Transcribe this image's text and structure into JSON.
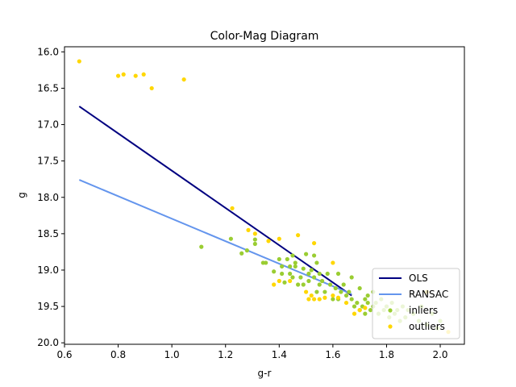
{
  "chart_data": {
    "type": "scatter",
    "title": "Color-Mag Diagram",
    "xlabel": "g-r",
    "ylabel": "g",
    "xlim": [
      0.6,
      2.09
    ],
    "ylim": [
      20.02,
      15.93
    ],
    "y_inverted": true,
    "grid": false,
    "legend_position": "lower right",
    "x_ticks": [
      0.6,
      0.8,
      1.0,
      1.2,
      1.4,
      1.6,
      1.8,
      2.0
    ],
    "x_tick_labels": [
      "0.6",
      "0.8",
      "1.0",
      "1.2",
      "1.4",
      "1.6",
      "1.8",
      "2.0"
    ],
    "y_ticks": [
      16.0,
      16.5,
      17.0,
      17.5,
      18.0,
      18.5,
      19.0,
      19.5,
      20.0
    ],
    "y_tick_labels": [
      "16.0",
      "16.5",
      "17.0",
      "17.5",
      "18.0",
      "18.5",
      "19.0",
      "19.5",
      "20.0"
    ],
    "lines": [
      {
        "name": "OLS",
        "color": "#000080",
        "x": [
          0.655,
          1.67
        ],
        "y": [
          16.75,
          19.35
        ]
      },
      {
        "name": "RANSAC",
        "color": "#6495ED",
        "x": [
          0.655,
          1.67
        ],
        "y": [
          17.76,
          19.33
        ]
      }
    ],
    "scatter": [
      {
        "name": "inliers",
        "color": "#9ACD32",
        "points": [
          [
            1.11,
            18.68
          ],
          [
            1.22,
            18.57
          ],
          [
            1.26,
            18.77
          ],
          [
            1.28,
            18.73
          ],
          [
            1.31,
            18.64
          ],
          [
            1.31,
            18.58
          ],
          [
            1.34,
            18.9
          ],
          [
            1.35,
            18.9
          ],
          [
            1.38,
            19.02
          ],
          [
            1.4,
            18.85
          ],
          [
            1.41,
            18.95
          ],
          [
            1.41,
            19.05
          ],
          [
            1.42,
            19.17
          ],
          [
            1.43,
            18.85
          ],
          [
            1.44,
            18.95
          ],
          [
            1.44,
            19.05
          ],
          [
            1.45,
            18.8
          ],
          [
            1.45,
            19.1
          ],
          [
            1.46,
            18.9
          ],
          [
            1.46,
            18.95
          ],
          [
            1.47,
            19.2
          ],
          [
            1.48,
            19.1
          ],
          [
            1.49,
            18.98
          ],
          [
            1.49,
            19.2
          ],
          [
            1.5,
            18.78
          ],
          [
            1.51,
            19.15
          ],
          [
            1.51,
            19.05
          ],
          [
            1.52,
            19.0
          ],
          [
            1.53,
            18.8
          ],
          [
            1.53,
            19.1
          ],
          [
            1.54,
            18.9
          ],
          [
            1.54,
            19.3
          ],
          [
            1.55,
            19.2
          ],
          [
            1.55,
            19.05
          ],
          [
            1.56,
            19.15
          ],
          [
            1.57,
            19.3
          ],
          [
            1.58,
            19.05
          ],
          [
            1.59,
            19.2
          ],
          [
            1.6,
            19.4
          ],
          [
            1.61,
            19.25
          ],
          [
            1.62,
            19.05
          ],
          [
            1.62,
            19.4
          ],
          [
            1.63,
            19.3
          ],
          [
            1.64,
            19.2
          ],
          [
            1.65,
            19.35
          ],
          [
            1.66,
            19.3
          ],
          [
            1.67,
            19.4
          ],
          [
            1.67,
            19.1
          ],
          [
            1.68,
            19.5
          ],
          [
            1.69,
            19.45
          ],
          [
            1.7,
            19.25
          ],
          [
            1.7,
            19.55
          ],
          [
            1.71,
            19.5
          ],
          [
            1.72,
            19.4
          ],
          [
            1.72,
            19.6
          ],
          [
            1.73,
            19.35
          ],
          [
            1.73,
            19.45
          ],
          [
            1.74,
            19.55
          ],
          [
            1.75,
            19.3
          ],
          [
            1.75,
            19.5
          ],
          [
            1.76,
            19.45
          ],
          [
            1.77,
            19.6
          ],
          [
            1.78,
            19.4
          ],
          [
            1.79,
            19.55
          ],
          [
            1.8,
            19.5
          ],
          [
            1.81,
            19.65
          ],
          [
            1.82,
            19.45
          ],
          [
            1.83,
            19.6
          ],
          [
            1.84,
            19.55
          ],
          [
            1.85,
            19.7
          ],
          [
            1.86,
            19.5
          ],
          [
            1.87,
            19.65
          ],
          [
            1.88,
            19.55
          ],
          [
            1.9,
            19.6
          ],
          [
            1.92,
            19.7
          ],
          [
            1.93,
            19.5
          ],
          [
            1.95,
            19.75
          ],
          [
            1.97,
            19.6
          ],
          [
            1.99,
            19.8
          ],
          [
            2.0,
            19.7
          ]
        ]
      },
      {
        "name": "outliers",
        "color": "#FFD700",
        "points": [
          [
            0.655,
            16.13
          ],
          [
            0.8,
            16.33
          ],
          [
            0.82,
            16.31
          ],
          [
            0.865,
            16.33
          ],
          [
            0.895,
            16.31
          ],
          [
            0.925,
            16.5
          ],
          [
            1.045,
            16.38
          ],
          [
            1.225,
            18.15
          ],
          [
            1.285,
            18.45
          ],
          [
            1.31,
            18.5
          ],
          [
            1.36,
            18.6
          ],
          [
            1.4,
            18.57
          ],
          [
            1.47,
            18.52
          ],
          [
            1.53,
            18.63
          ],
          [
            1.6,
            18.9
          ],
          [
            1.38,
            19.2
          ],
          [
            1.4,
            19.15
          ],
          [
            1.44,
            19.15
          ],
          [
            1.5,
            19.3
          ],
          [
            1.51,
            19.4
          ],
          [
            1.52,
            19.35
          ],
          [
            1.53,
            19.4
          ],
          [
            1.55,
            19.4
          ],
          [
            1.57,
            19.38
          ],
          [
            1.6,
            19.35
          ],
          [
            1.62,
            19.38
          ],
          [
            1.65,
            19.45
          ],
          [
            1.68,
            19.6
          ],
          [
            1.7,
            19.55
          ],
          [
            1.72,
            19.52
          ],
          [
            1.95,
            19.3
          ],
          [
            2.03,
            19.85
          ]
        ]
      }
    ]
  }
}
